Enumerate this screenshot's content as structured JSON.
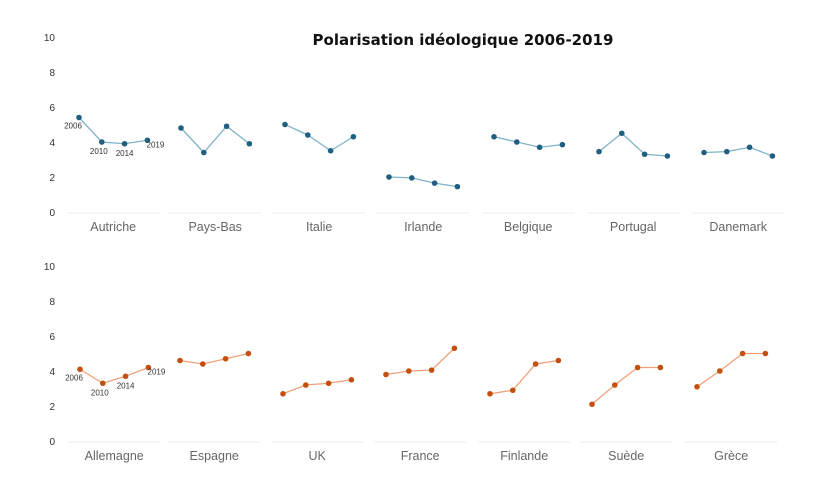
{
  "chart_data": {
    "type": "line",
    "title": "Polarisation idéologique 2006-2019",
    "x": [
      "2006",
      "2010",
      "2014",
      "2019"
    ],
    "ylim": [
      0,
      10
    ],
    "yticks": [
      "0",
      "2",
      "4",
      "6",
      "8",
      "10"
    ],
    "grid": false,
    "rows": [
      {
        "color": "#1f5f7f",
        "line_color": "#7fb3c9",
        "series": [
          {
            "name": "Autriche",
            "values": [
              5.4,
              4.0,
              3.9,
              4.1
            ]
          },
          {
            "name": "Pays-Bas",
            "values": [
              4.8,
              3.4,
              4.9,
              3.9
            ]
          },
          {
            "name": "Italie",
            "values": [
              5.0,
              4.4,
              3.5,
              4.3
            ]
          },
          {
            "name": "Irlande",
            "values": [
              2.0,
              1.95,
              1.65,
              1.45
            ]
          },
          {
            "name": "Belgique",
            "values": [
              4.3,
              4.0,
              3.7,
              3.85
            ]
          },
          {
            "name": "Portugal",
            "values": [
              3.45,
              4.5,
              3.3,
              3.2
            ]
          },
          {
            "name": "Danemark",
            "values": [
              3.4,
              3.45,
              3.7,
              3.2
            ]
          }
        ]
      },
      {
        "color": "#c4500f",
        "line_color": "#eea27a",
        "series": [
          {
            "name": "Allemagne",
            "values": [
              4.1,
              3.3,
              3.7,
              4.2
            ]
          },
          {
            "name": "Espagne",
            "values": [
              4.6,
              4.4,
              4.7,
              5.0
            ]
          },
          {
            "name": "UK",
            "values": [
              2.7,
              3.2,
              3.3,
              3.5
            ]
          },
          {
            "name": "France",
            "values": [
              3.8,
              4.0,
              4.05,
              5.3
            ]
          },
          {
            "name": "Finlande",
            "values": [
              2.7,
              2.9,
              4.4,
              4.6
            ]
          },
          {
            "name": "Suède",
            "values": [
              2.1,
              3.2,
              4.2,
              4.2
            ]
          },
          {
            "name": "Grèce",
            "values": [
              3.1,
              4.0,
              5.0,
              5.0
            ]
          }
        ]
      }
    ]
  }
}
